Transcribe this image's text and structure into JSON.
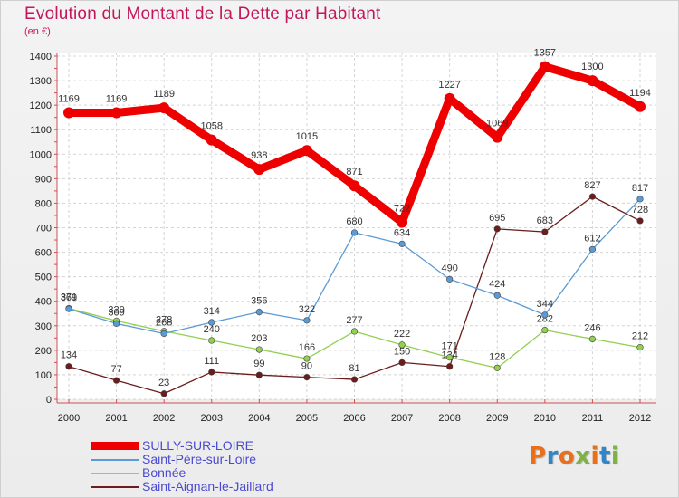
{
  "chart_data": {
    "type": "line",
    "title": "Evolution du Montant de la Dette par Habitant",
    "subtitle": "(en €)",
    "x": [
      "2000",
      "2001",
      "2002",
      "2003",
      "2004",
      "2005",
      "2006",
      "2007",
      "2008",
      "2009",
      "2010",
      "2011",
      "2012"
    ],
    "ylim": [
      0,
      1400
    ],
    "yticks": [
      0,
      100,
      200,
      300,
      400,
      500,
      600,
      700,
      800,
      900,
      1000,
      1100,
      1200,
      1300,
      1400
    ],
    "grid": true,
    "legend_position": "bottom-left",
    "series": [
      {
        "name": "SULLY-SUR-LOIRE",
        "color": "#ee0000",
        "values": [
          1169,
          1169,
          1189,
          1058,
          938,
          1015,
          871,
          722,
          1227,
          1069,
          1357,
          1300,
          1194
        ]
      },
      {
        "name": "Saint-Père-sur-Loire",
        "color": "#5b9bd5",
        "values": [
          369,
          309,
          268,
          314,
          356,
          322,
          680,
          634,
          490,
          424,
          344,
          612,
          817
        ]
      },
      {
        "name": "Bonnée",
        "color": "#92d050",
        "values": [
          371,
          320,
          278,
          240,
          203,
          166,
          277,
          222,
          171,
          128,
          282,
          246,
          212
        ]
      },
      {
        "name": "Saint-Aignan-le-Jaillard",
        "color": "#6b1c1c",
        "values": [
          134,
          77,
          23,
          111,
          99,
          90,
          81,
          150,
          134,
          695,
          683,
          827,
          728
        ]
      }
    ]
  },
  "logo": {
    "letters": [
      {
        "ch": "P",
        "color": "#e8701a"
      },
      {
        "ch": "r",
        "color": "#2f86c8"
      },
      {
        "ch": "o",
        "color": "#e8701a"
      },
      {
        "ch": "x",
        "color": "#7cb342"
      },
      {
        "ch": "i",
        "color": "#e8701a"
      },
      {
        "ch": "t",
        "color": "#2f86c8"
      },
      {
        "ch": "i",
        "color": "#7cb342"
      }
    ]
  }
}
